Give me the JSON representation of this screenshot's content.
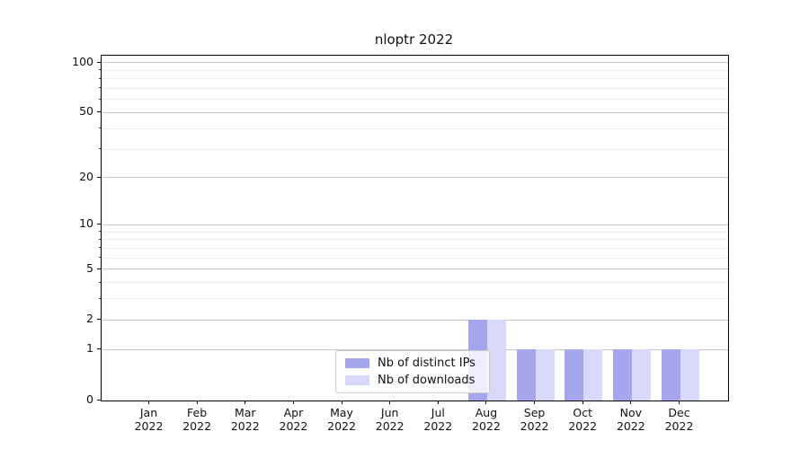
{
  "chart_data": {
    "type": "bar",
    "title": "nloptr 2022",
    "x_axis": {
      "categories": [
        "Jan",
        "Feb",
        "Mar",
        "Apr",
        "May",
        "Jun",
        "Jul",
        "Aug",
        "Sep",
        "Oct",
        "Nov",
        "Dec"
      ],
      "year": "2022"
    },
    "y_axis": {
      "scale": "log1p",
      "lim": [
        0,
        110
      ],
      "major_ticks": [
        0,
        1,
        2,
        5,
        10,
        20,
        50,
        100
      ]
    },
    "grid": {
      "on": true,
      "major_values": [
        1,
        2,
        5,
        10,
        20,
        50,
        100
      ],
      "minor_values": [
        3,
        4,
        6,
        7,
        8,
        9,
        30,
        40,
        60,
        70,
        80,
        90
      ]
    },
    "series": [
      {
        "name": "Nb of distinct IPs",
        "color": "#a6a6ee",
        "values": [
          0,
          0,
          0,
          0,
          0,
          0,
          0,
          2,
          1,
          1,
          1,
          1
        ]
      },
      {
        "name": "Nb of downloads",
        "color": "#d8d8f8",
        "values": [
          0,
          0,
          0,
          0,
          0,
          0,
          0,
          2,
          1,
          1,
          1,
          1
        ]
      }
    ],
    "legend_position": "lower center"
  },
  "colors": {
    "bar_distinct_ips": "#a6a6ee",
    "bar_downloads": "#d8d8f8",
    "grid_major": "#c4c4c4",
    "grid_minor": "#ececec",
    "spine": "#000000",
    "text": "#111111"
  }
}
